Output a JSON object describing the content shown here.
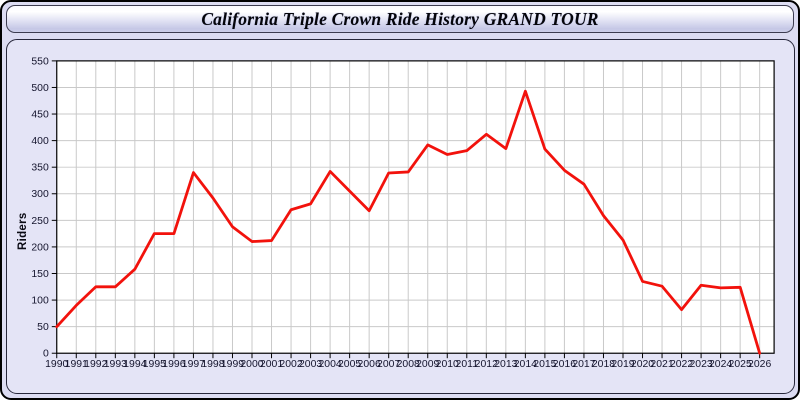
{
  "header": {
    "title": "California Triple Crown Ride History GRAND TOUR"
  },
  "chart_data": {
    "type": "line",
    "title": "California Triple Crown Ride History GRAND TOUR",
    "xlabel": "",
    "ylabel": "Riders",
    "categories": [
      1990,
      1991,
      1992,
      1993,
      1994,
      1995,
      1996,
      1997,
      1998,
      1999,
      2000,
      2001,
      2002,
      2003,
      2004,
      2005,
      2006,
      2007,
      2008,
      2009,
      2010,
      2011,
      2012,
      2013,
      2014,
      2015,
      2016,
      2017,
      2018,
      2019,
      2020,
      2021,
      2022,
      2023,
      2024,
      2025,
      2026
    ],
    "values": [
      50,
      90,
      125,
      125,
      158,
      225,
      225,
      340,
      292,
      238,
      210,
      212,
      270,
      281,
      342,
      305,
      268,
      339,
      341,
      392,
      374,
      381,
      412,
      385,
      493,
      384,
      344,
      318,
      259,
      213,
      135,
      126,
      82,
      128,
      123,
      124,
      0
    ],
    "ylim": [
      0,
      550
    ],
    "ytick_step": 50,
    "grid": true,
    "legend_position": "none",
    "line_color": "#f2120c",
    "grid_color": "#c9c9c9",
    "axis_color": "#000000",
    "tick_label_color": "#15152e"
  }
}
